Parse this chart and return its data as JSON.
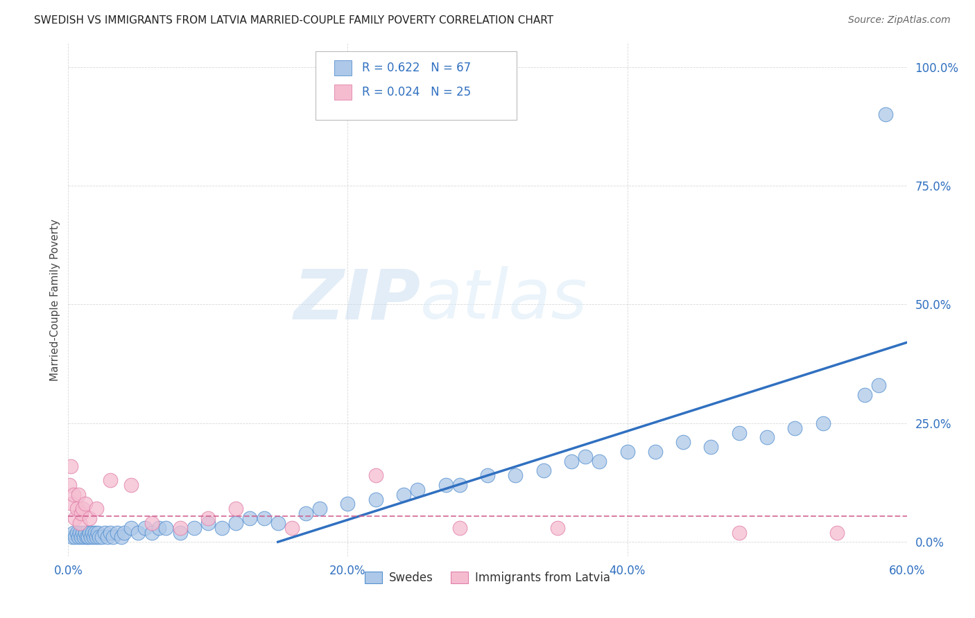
{
  "title": "SWEDISH VS IMMIGRANTS FROM LATVIA MARRIED-COUPLE FAMILY POVERTY CORRELATION CHART",
  "source": "Source: ZipAtlas.com",
  "ylabel": "Married-Couple Family Poverty",
  "xlabel_ticks": [
    "0.0%",
    "20.0%",
    "40.0%",
    "60.0%"
  ],
  "xlabel_vals": [
    0,
    20,
    40,
    60
  ],
  "ylabel_ticks": [
    "0.0%",
    "25.0%",
    "50.0%",
    "75.0%",
    "100.0%"
  ],
  "ylabel_vals": [
    0,
    25,
    50,
    75,
    100
  ],
  "swedes_R": 0.622,
  "swedes_N": 67,
  "latvia_R": 0.024,
  "latvia_N": 25,
  "swedes_color": "#adc8e8",
  "swedes_edge_color": "#5590d0",
  "swedes_line_color": "#3070c0",
  "latvia_color": "#f5bcd0",
  "latvia_edge_color": "#e080a8",
  "latvia_line_color": "#d06090",
  "tick_color": "#3070c0",
  "watermark_color": "#d8eaf8",
  "background_color": "#ffffff",
  "grid_color": "#c8c8c8",
  "swedes_x": [
    0.3,
    0.4,
    0.5,
    0.6,
    0.7,
    0.8,
    0.9,
    1.0,
    1.1,
    1.2,
    1.3,
    1.4,
    1.5,
    1.6,
    1.7,
    1.8,
    1.9,
    2.0,
    2.1,
    2.2,
    2.4,
    2.6,
    2.8,
    3.0,
    3.2,
    3.5,
    3.8,
    4.0,
    4.5,
    5.0,
    5.5,
    6.0,
    6.5,
    7.0,
    8.0,
    9.0,
    10.0,
    11.0,
    12.0,
    13.0,
    14.0,
    15.0,
    17.0,
    18.0,
    20.0,
    22.0,
    24.0,
    25.0,
    27.0,
    28.0,
    30.0,
    32.0,
    34.0,
    36.0,
    37.0,
    38.0,
    40.0,
    42.0,
    44.0,
    46.0,
    48.0,
    50.0,
    52.0,
    54.0,
    57.0,
    58.0,
    58.5
  ],
  "swedes_y": [
    1,
    2,
    1,
    2,
    1,
    2,
    1,
    2,
    1,
    2,
    1,
    1,
    2,
    1,
    2,
    1,
    2,
    1,
    2,
    1,
    1,
    2,
    1,
    2,
    1,
    2,
    1,
    2,
    3,
    2,
    3,
    2,
    3,
    3,
    2,
    3,
    4,
    3,
    4,
    5,
    5,
    4,
    6,
    7,
    8,
    9,
    10,
    11,
    12,
    12,
    14,
    14,
    15,
    17,
    18,
    17,
    19,
    19,
    21,
    20,
    23,
    22,
    24,
    25,
    31,
    33,
    90
  ],
  "latvia_x": [
    0.1,
    0.2,
    0.3,
    0.4,
    0.5,
    0.6,
    0.7,
    0.8,
    0.9,
    1.0,
    1.2,
    1.5,
    2.0,
    3.0,
    4.5,
    6.0,
    8.0,
    10.0,
    12.0,
    16.0,
    22.0,
    28.0,
    35.0,
    48.0,
    55.0
  ],
  "latvia_y": [
    12,
    16,
    8,
    10,
    5,
    7,
    10,
    4,
    6,
    7,
    8,
    5,
    7,
    13,
    12,
    4,
    3,
    5,
    7,
    3,
    14,
    3,
    3,
    2,
    2
  ],
  "swedes_trendline": [
    15,
    0,
    60,
    42
  ],
  "latvia_trendline": [
    0,
    5.5,
    60,
    5.5
  ],
  "watermark_zip": "ZIP",
  "watermark_atlas": "atlas"
}
